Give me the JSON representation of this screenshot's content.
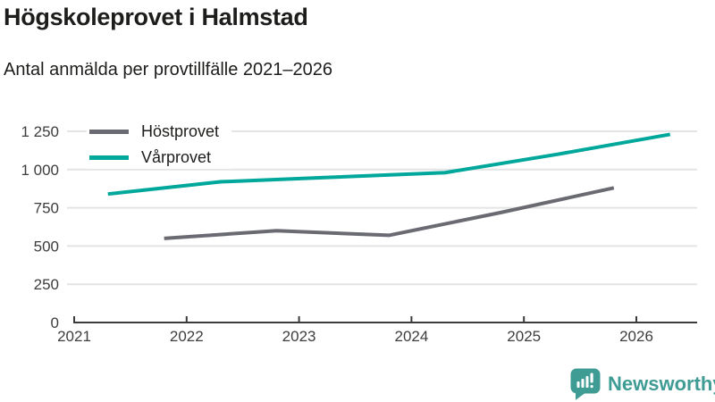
{
  "header": {
    "title": "Högskoleprovet i Halmstad",
    "subtitle": "Antal anmälda per provtillfälle 2021–2026"
  },
  "chart_data": {
    "type": "line",
    "title": "Högskoleprovet i Halmstad",
    "subtitle": "Antal anmälda per provtillfälle 2021–2026",
    "xlabel": "",
    "ylabel": "",
    "xlim": [
      2021,
      2026.6
    ],
    "ylim": [
      0,
      1250
    ],
    "grid": "horizontal",
    "legend_position": "top-left",
    "x_ticks": [
      2021,
      2022,
      2023,
      2024,
      2025,
      2026
    ],
    "y_ticks": [
      {
        "value": 0,
        "label": "0"
      },
      {
        "value": 250,
        "label": "250"
      },
      {
        "value": 500,
        "label": "500"
      },
      {
        "value": 750,
        "label": "750"
      },
      {
        "value": 1000,
        "label": "1 000"
      },
      {
        "value": 1250,
        "label": "1 250"
      }
    ],
    "series": [
      {
        "name": "Höstprovet",
        "color": "#6a6a72",
        "x": [
          2021.8,
          2022.8,
          2023.8,
          2024.8,
          2025.8
        ],
        "values": [
          550,
          600,
          570,
          720,
          880
        ]
      },
      {
        "name": "Vårprovet",
        "color": "#00a79b",
        "x": [
          2021.3,
          2022.3,
          2023.3,
          2024.3,
          2025.3,
          2026.3
        ],
        "values": [
          840,
          920,
          950,
          980,
          1100,
          1230
        ]
      }
    ]
  },
  "footer": {
    "brand": "Newsworthy"
  },
  "colors": {
    "teal_line": "#00a79b",
    "gray_line": "#6a6a72",
    "grid": "#e4e4e4",
    "axis": "#3b3b3b",
    "tick_text": "#3d3d3d",
    "text": "#1d1d1b",
    "brand_teal": "#3f9c95"
  }
}
